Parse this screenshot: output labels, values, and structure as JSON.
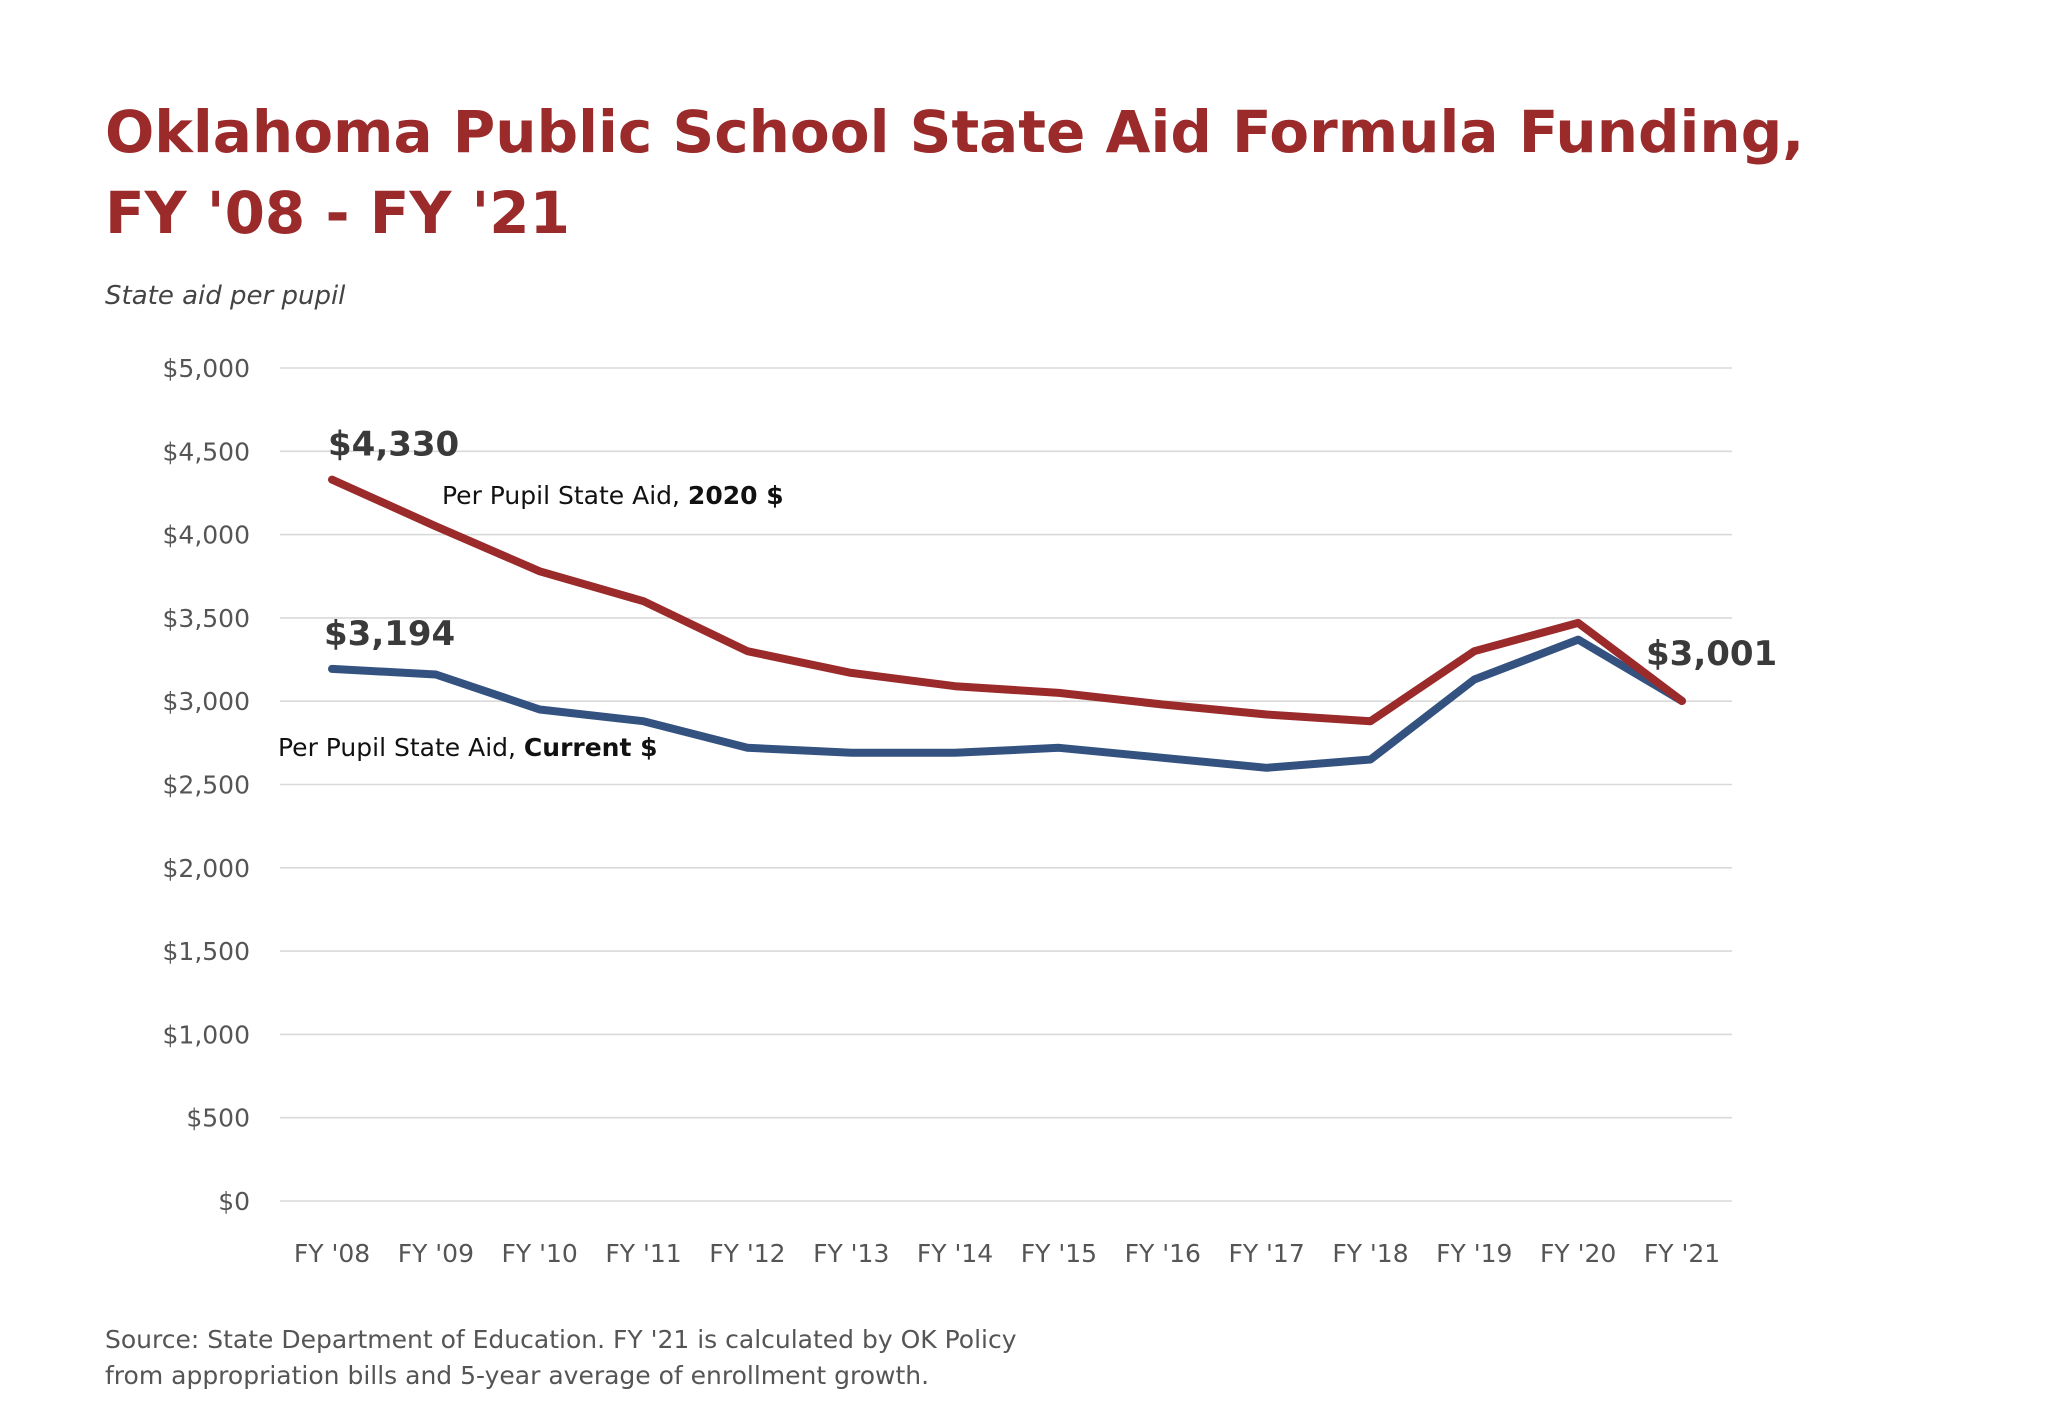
{
  "chart_data": {
    "type": "line",
    "title_lines": [
      "Oklahoma Public School State Aid Formula Funding,",
      "FY '08 - FY '21"
    ],
    "subtitle": "State aid per pupil",
    "xlabel": "",
    "ylabel": "",
    "categories": [
      "FY '08",
      "FY '09",
      "FY '10",
      "FY '11",
      "FY '12",
      "FY '13",
      "FY '14",
      "FY '15",
      "FY '16",
      "FY '17",
      "FY '18",
      "FY '19",
      "FY '20",
      "FY '21"
    ],
    "ylim": [
      0,
      5000
    ],
    "yticks": [
      0,
      500,
      1000,
      1500,
      2000,
      2500,
      3000,
      3500,
      4000,
      4500,
      5000
    ],
    "ytick_labels": [
      "$0",
      "$500",
      "$1,000",
      "$1,500",
      "$2,000",
      "$2,500",
      "$3,000",
      "$3,500",
      "$4,000",
      "$4,500",
      "$5,000"
    ],
    "grid": true,
    "series": [
      {
        "key": "real",
        "label_prefix": "Per Pupil State Aid, ",
        "label_bold": "2020 $",
        "color": "#9b2a2b",
        "values": [
          4330,
          4050,
          3780,
          3600,
          3300,
          3170,
          3090,
          3050,
          2980,
          2920,
          2880,
          3300,
          3470,
          3001
        ]
      },
      {
        "key": "current",
        "label_prefix": "Per Pupil State Aid, ",
        "label_bold": "Current $",
        "color": "#34527f",
        "values": [
          3194,
          3160,
          2950,
          2880,
          2720,
          2690,
          2690,
          2720,
          2660,
          2600,
          2650,
          3130,
          3370,
          3001
        ]
      }
    ],
    "annotations": [
      {
        "text": "$4,330",
        "series": "real",
        "index": 0
      },
      {
        "text": "$3,194",
        "series": "current",
        "index": 0
      },
      {
        "text": "$3,001",
        "series": "real",
        "index": 13
      }
    ],
    "source_lines": [
      "Source: State Department of Education. FY '21 is calculated by OK Policy",
      "from appropriation bills and 5-year average of enrollment growth."
    ]
  }
}
